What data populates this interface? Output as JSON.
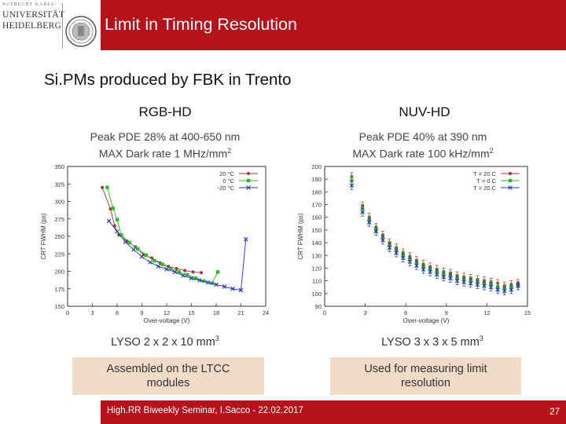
{
  "header": {
    "logo_line0": "RUPRECHT-KARLS-",
    "logo_line1": "UNIVERSITÄT",
    "logo_line2": "HEIDELBERG",
    "title": "Limit in Timing Resolution"
  },
  "subtitle": "Si.PMs produced by FBK in Trento",
  "left": {
    "name": "RGB-HD",
    "pde": "Peak PDE 28% at 400-650 nm",
    "dark_rate": "MAX Dark rate 1 MHz/mm",
    "dark_rate_exp": "2",
    "lyso": "LYSO 2 x 2 x 10 mm",
    "lyso_exp": "3",
    "note_line1": "Assembled on the LTCC",
    "note_line2": "modules"
  },
  "right": {
    "name": "NUV-HD",
    "pde": "Peak PDE 40% at 390 nm",
    "dark_rate": "MAX Dark rate 100 kHz/mm",
    "dark_rate_exp": "2",
    "lyso": "LYSO 3 x 3 x 5 mm",
    "lyso_exp": "3",
    "note_line1": "Used for measuring limit",
    "note_line2": "resolution"
  },
  "footer": {
    "text": "High.RR Biweekly Seminar, I.Sacco - 22.02.2017",
    "page": "27"
  },
  "colors": {
    "accent": "#b5121b",
    "note_bg": "#f2dcc8",
    "s_red": "#b03030",
    "s_green": "#20c020",
    "s_blue": "#2030c0"
  },
  "chart_data": [
    {
      "type": "scatter",
      "title": "",
      "xlabel": "Over-voltage (V)",
      "ylabel": "CRT FWHM (ps)",
      "xlim": [
        0,
        24
      ],
      "ylim": [
        150,
        350
      ],
      "xticks": [
        0,
        3,
        6,
        9,
        12,
        15,
        18,
        21,
        24
      ],
      "yticks": [
        150,
        175,
        200,
        225,
        250,
        275,
        300,
        325,
        350
      ],
      "legend_position": "top-right",
      "series": [
        {
          "name": "20 °C",
          "color": "#b03030",
          "marker": "circle",
          "x": [
            4.2,
            5.2,
            5.7,
            6.2,
            7.2,
            8.2,
            9.2,
            10.2,
            11.2,
            12.2,
            13.2,
            14.2,
            15.2,
            16.2
          ],
          "y": [
            320,
            289,
            265,
            252,
            243,
            235,
            224,
            219,
            212,
            207,
            204,
            201,
            199,
            198
          ]
        },
        {
          "name": "0 °C",
          "color": "#20c020",
          "marker": "square",
          "x": [
            4.8,
            5.5,
            6.0,
            6.5,
            7.5,
            8.5,
            9.5,
            10.5,
            11.5,
            12.5,
            13.5,
            14.5,
            15.5,
            16.5,
            17.5,
            18.2
          ],
          "y": [
            320,
            290,
            274,
            252,
            241,
            232,
            223,
            215,
            210,
            204,
            199,
            195,
            190,
            186,
            183,
            199
          ]
        },
        {
          "name": "-20 °C",
          "color": "#2030c0",
          "marker": "x",
          "x": [
            5.0,
            6.0,
            7.0,
            8.0,
            9.0,
            10.0,
            11.0,
            12.0,
            13.0,
            14.0,
            15.0,
            16.0,
            17.0,
            18.0,
            19.0,
            20.0,
            21.0,
            21.6
          ],
          "y": [
            272,
            257,
            242,
            231,
            221,
            213,
            207,
            203,
            199,
            194,
            190,
            187,
            184,
            181,
            178,
            175,
            173,
            246
          ]
        }
      ]
    },
    {
      "type": "scatter",
      "title": "",
      "xlabel": "Over-voltage (V)",
      "ylabel": "CRT FWHM (ps)",
      "xlim": [
        0,
        15
      ],
      "ylim": [
        90,
        200
      ],
      "xticks": [
        0,
        3,
        6,
        9,
        12,
        15
      ],
      "yticks": [
        90,
        100,
        110,
        120,
        130,
        140,
        150,
        160,
        170,
        180,
        190,
        200
      ],
      "legend_position": "top-right",
      "series": [
        {
          "name": "T = 20 C",
          "color": "#b03030",
          "marker": "circle",
          "x": [
            2.0,
            2.8,
            3.3,
            3.8,
            4.3,
            4.8,
            5.3,
            5.8,
            6.3,
            6.8,
            7.3,
            7.8,
            8.3,
            8.8,
            9.3,
            9.8,
            10.3,
            10.8,
            11.3,
            11.8,
            12.3,
            12.8,
            13.3,
            13.8,
            14.3
          ],
          "y": [
            192,
            169,
            160,
            152,
            146,
            140,
            136,
            132,
            129,
            126,
            123,
            121,
            119,
            117,
            116,
            114,
            113,
            112,
            111,
            110,
            109,
            108,
            106,
            107,
            108
          ]
        },
        {
          "name": "T = 0 C",
          "color": "#20c020",
          "marker": "square",
          "x": [
            2.0,
            2.8,
            3.3,
            3.8,
            4.3,
            4.8,
            5.3,
            5.8,
            6.3,
            6.8,
            7.3,
            7.8,
            8.3,
            8.8,
            9.3,
            9.8,
            10.3,
            10.8,
            11.3,
            11.8,
            12.3,
            12.8,
            13.3,
            13.8,
            14.3
          ],
          "y": [
            189,
            167,
            158,
            151,
            144,
            138,
            134,
            130,
            127,
            124,
            121,
            119,
            117,
            115,
            114,
            112,
            111,
            110,
            109,
            108,
            107,
            105,
            104,
            105,
            106
          ]
        },
        {
          "name": "T = 20 C",
          "color": "#2030c0",
          "marker": "x",
          "x": [
            2.0,
            2.8,
            3.3,
            3.8,
            4.3,
            4.8,
            5.3,
            5.8,
            6.3,
            6.8,
            7.3,
            7.8,
            8.3,
            8.8,
            9.3,
            9.8,
            10.3,
            10.8,
            11.3,
            11.8,
            12.3,
            12.8,
            13.3,
            13.8,
            14.3
          ],
          "y": [
            185,
            164,
            156,
            149,
            142,
            136,
            132,
            128,
            125,
            122,
            119,
            117,
            115,
            113,
            112,
            110,
            109,
            108,
            107,
            106,
            105,
            103,
            102,
            103,
            106
          ]
        }
      ]
    }
  ]
}
